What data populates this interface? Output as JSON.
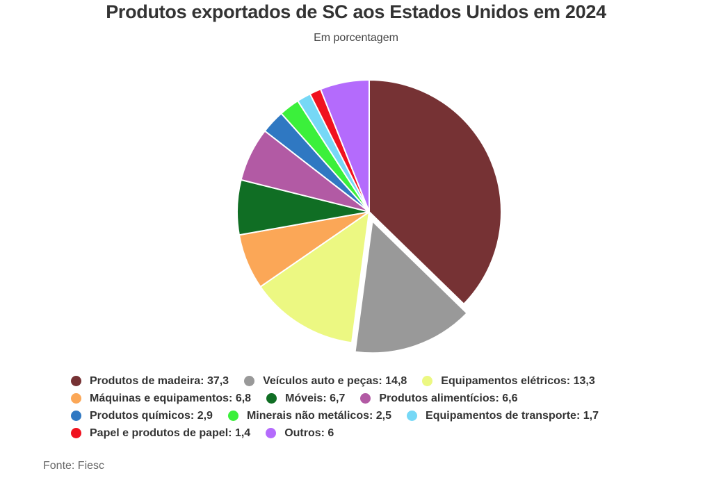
{
  "header": {
    "title": "Produtos exportados de SC aos Estados Unidos em 2024",
    "subtitle": "Em porcentagem"
  },
  "chart_data": {
    "type": "pie",
    "title": "Produtos exportados de SC aos Estados Unidos em 2024",
    "subtitle": "Em porcentagem",
    "legend_position": "bottom",
    "exploded_slice": "Veículos auto e peças",
    "slices": [
      {
        "label": "Produtos de madeira",
        "value": 37.3,
        "value_label": "37,3",
        "color": "#763234"
      },
      {
        "label": "Veículos auto e peças",
        "value": 14.8,
        "value_label": "14,8",
        "color": "#999999"
      },
      {
        "label": "Equipamentos elétricos",
        "value": 13.3,
        "value_label": "13,3",
        "color": "#ecf882"
      },
      {
        "label": "Máquinas e equipamentos",
        "value": 6.8,
        "value_label": "6,8",
        "color": "#fba757"
      },
      {
        "label": "Móveis",
        "value": 6.7,
        "value_label": "6,7",
        "color": "#106e24"
      },
      {
        "label": "Produtos alimentícios",
        "value": 6.6,
        "value_label": "6,6",
        "color": "#b25aa4"
      },
      {
        "label": "Produtos químicos",
        "value": 2.9,
        "value_label": "2,9",
        "color": "#2f78c2"
      },
      {
        "label": "Minerais não metálicos",
        "value": 2.5,
        "value_label": "2,5",
        "color": "#3bf03b"
      },
      {
        "label": "Equipamentos de transporte",
        "value": 1.7,
        "value_label": "1,7",
        "color": "#76d8f6"
      },
      {
        "label": "Papel e produtos de papel",
        "value": 1.4,
        "value_label": "1,4",
        "color": "#f0121f"
      },
      {
        "label": "Outros",
        "value": 6,
        "value_label": "6",
        "color": "#b46bfc"
      }
    ]
  },
  "footer": {
    "source": "Fonte: Fiesc"
  }
}
